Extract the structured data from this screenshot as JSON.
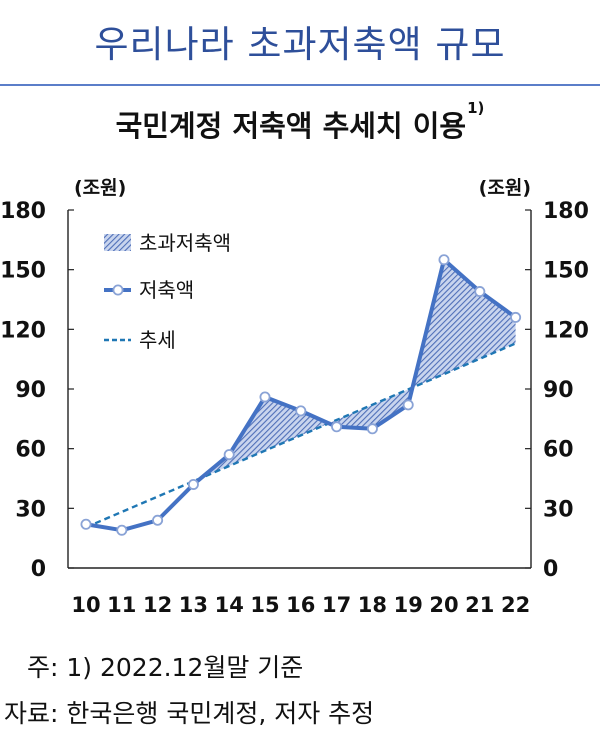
{
  "header": {
    "banner_title": "우리나라 초과저축액 규모",
    "subtitle": "국민계정 저축액 추세치 이용",
    "subtitle_footnote": "1)"
  },
  "chart_data": {
    "type": "line",
    "title": "국민계정 저축액 추세치 이용",
    "categories": [
      "10",
      "11",
      "12",
      "13",
      "14",
      "15",
      "16",
      "17",
      "18",
      "19",
      "20",
      "21",
      "22"
    ],
    "series": [
      {
        "name": "저축액",
        "values": [
          22,
          19,
          24,
          42,
          57,
          86,
          79,
          71,
          70,
          82,
          155,
          139,
          126
        ],
        "color": "#4472c4",
        "style": "line-marker"
      },
      {
        "name": "추세",
        "values": [
          20.5,
          28.2,
          35.9,
          43.6,
          51.3,
          59.0,
          66.7,
          74.4,
          82.1,
          89.8,
          97.5,
          105.2,
          112.9
        ],
        "color": "#1f77b4",
        "style": "dashed"
      }
    ],
    "area": {
      "name": "초과저축액",
      "color": "#6f8fcf",
      "pattern": "hatched"
    },
    "y_unit_left": "(조원)",
    "y_unit_right": "(조원)",
    "yticks": [
      "0",
      "30",
      "60",
      "90",
      "120",
      "150",
      "180"
    ],
    "ylim": [
      0,
      180
    ],
    "grid": false,
    "legend_position": "top-left"
  },
  "notes": {
    "note1": "주: 1) 2022.12월말 기준",
    "source": "자료: 한국은행 국민계정, 저자 추정"
  }
}
